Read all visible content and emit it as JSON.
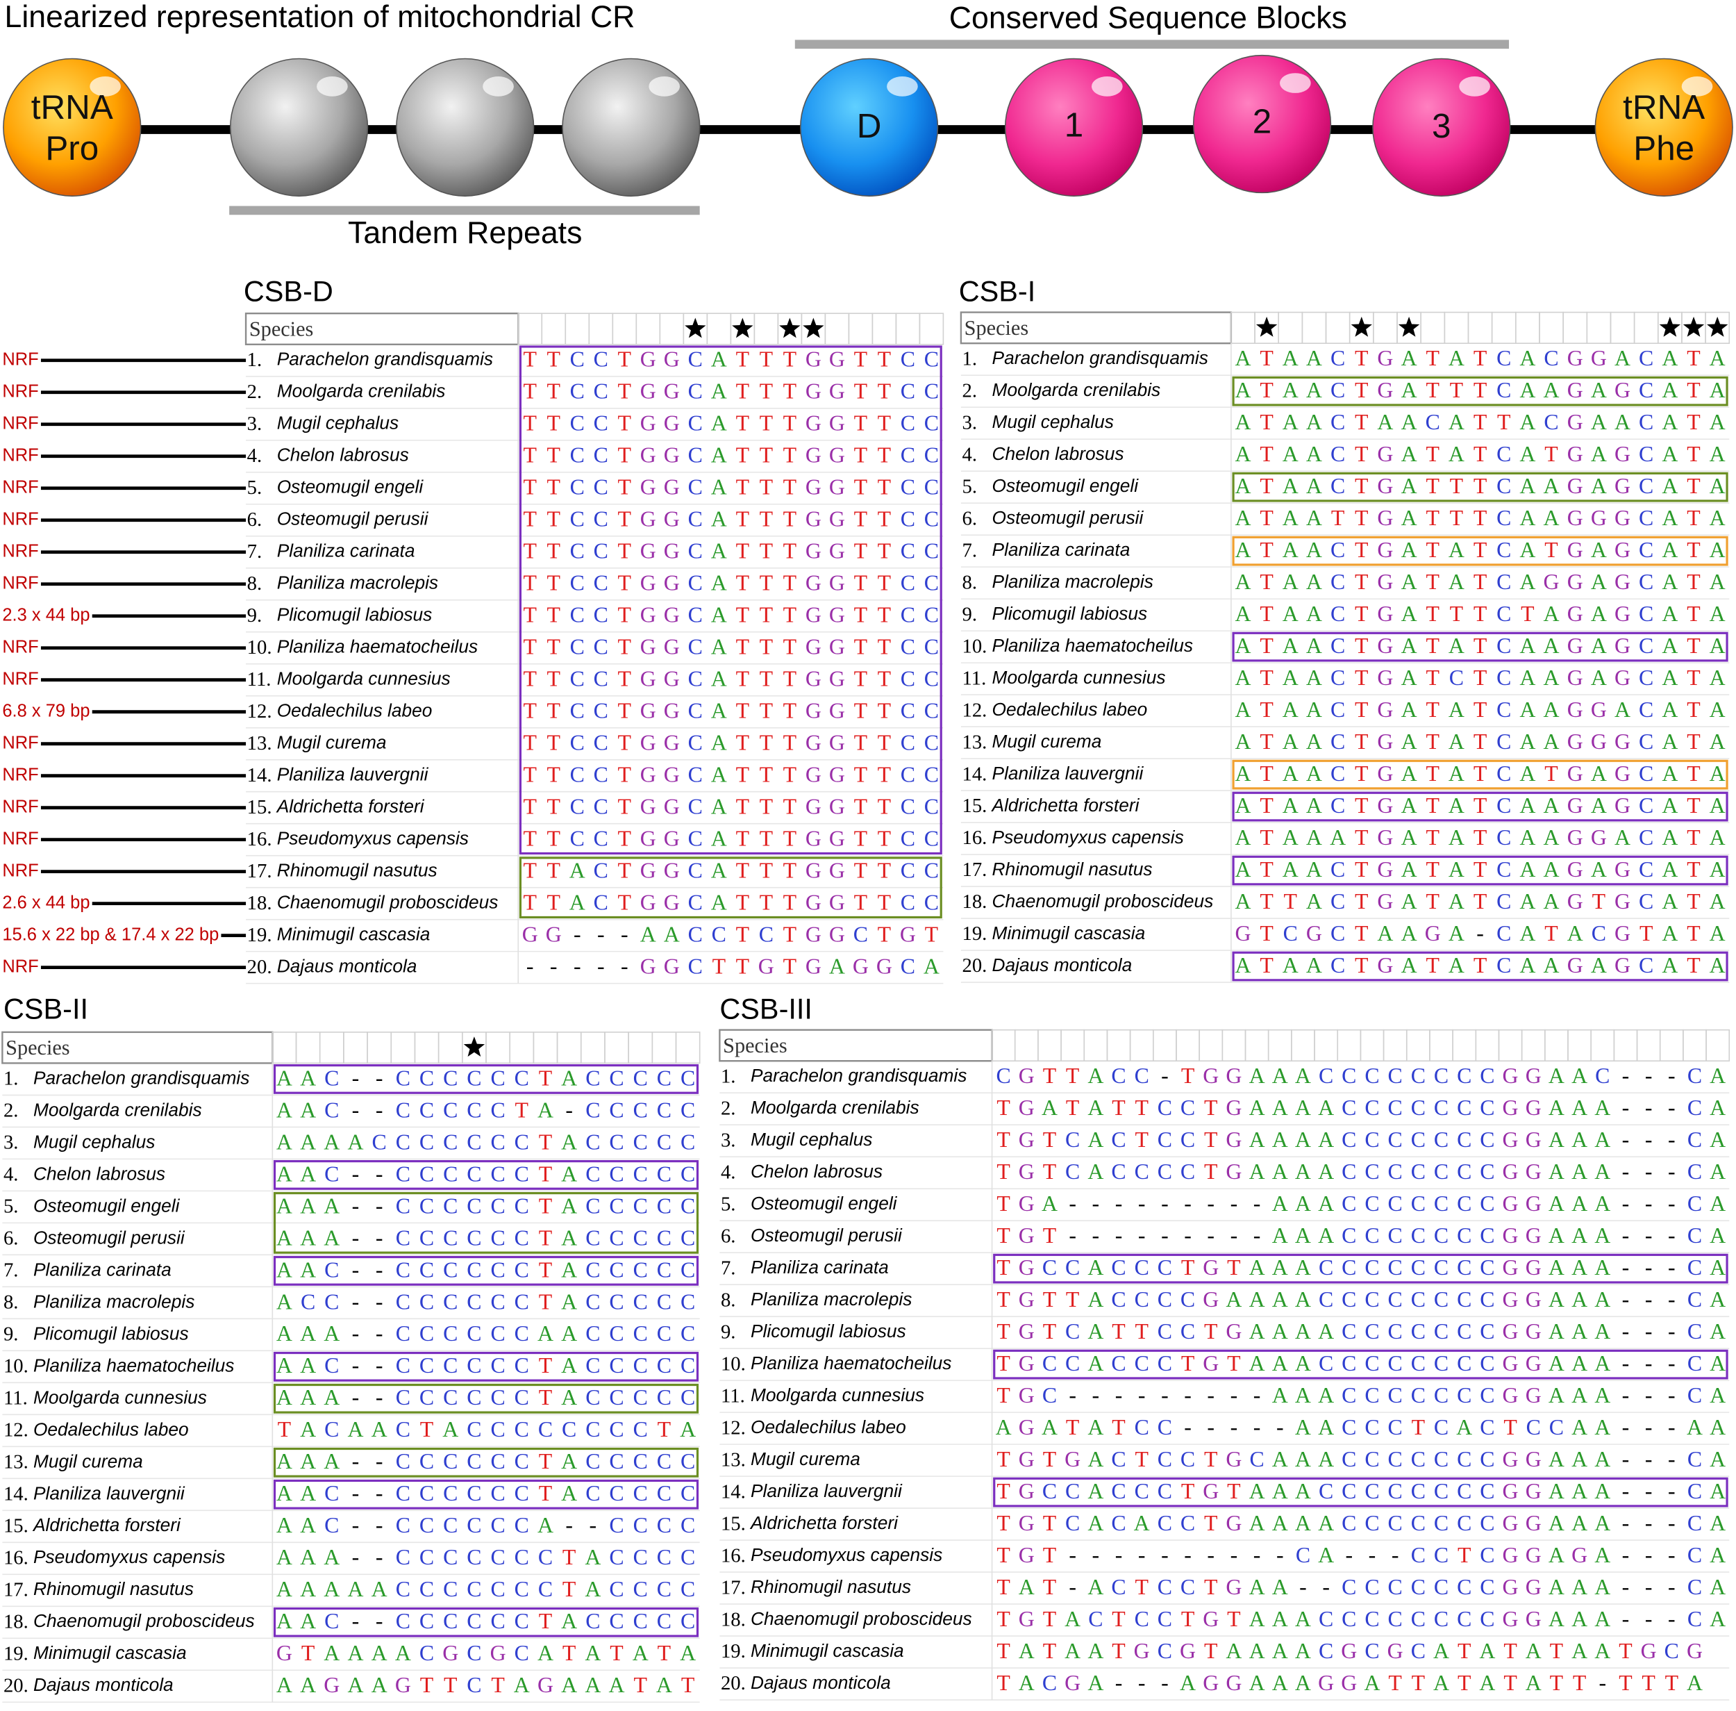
{
  "diagram": {
    "title": "Linearized representation of mitochondrial CR",
    "csb_label": "Conserved Sequence Blocks",
    "tr_label": "Tandem Repeats",
    "nodes": [
      [
        "tRNA",
        "Pro"
      ],
      [
        "D"
      ],
      [
        "1"
      ],
      [
        "2"
      ],
      [
        "3"
      ],
      [
        "tRNA",
        "Phe"
      ]
    ]
  },
  "numbers": [
    "1.",
    "2.",
    "3.",
    "4.",
    "5.",
    "6.",
    "7.",
    "8.",
    "9.",
    "10.",
    "11.",
    "12.",
    "13.",
    "14.",
    "15.",
    "16.",
    "17.",
    "18.",
    "19.",
    "20."
  ],
  "species": [
    "Parachelon grandisquamis",
    "Moolgarda crenilabis",
    "Mugil cephalus",
    "Chelon labrosus",
    "Osteomugil engeli",
    "Osteomugil perusii",
    "Planiliza carinata",
    "Planiliza macrolepis",
    "Plicomugil labiosus",
    "Planiliza haematocheilus",
    "Moolgarda cunnesius",
    "Oedalechilus labeo",
    "Mugil curema",
    "Planiliza lauvergnii",
    "Aldrichetta forsteri",
    "Pseudomyxus capensis",
    "Rhinomugil nasutus",
    "Chaenomugil proboscideus",
    "Minimugil cascasia",
    "Dajaus monticola"
  ],
  "panels": [
    {
      "title": "CSB-D",
      "header": "Species",
      "stars": [
        7,
        9,
        11,
        12
      ],
      "repeats": [
        "NRF",
        "NRF",
        "NRF",
        "NRF",
        "NRF",
        "NRF",
        "NRF",
        "NRF",
        "2.3 x 44 bp",
        "NRF",
        "NRF",
        "6.8 x 79 bp",
        "NRF",
        "NRF",
        "NRF",
        "NRF",
        "NRF",
        "2.6 x 44 bp",
        "15.6 x 22 bp & 17.4 x 22 bp",
        "NRF"
      ],
      "rows": [
        {
          "seq": "TTCCTGGCATTTGGTTCC",
          "box": "#7b2fbf"
        },
        {
          "seq": "TTCCTGGCATTTGGTTCC",
          "box": "#7b2fbf"
        },
        {
          "seq": "TTCCTGGCATTTGGTTCC",
          "box": "#7b2fbf"
        },
        {
          "seq": "TTCCTGGCATTTGGTTCC",
          "box": "#7b2fbf"
        },
        {
          "seq": "TTCCTGGCATTTGGTTCC",
          "box": "#7b2fbf"
        },
        {
          "seq": "TTCCTGGCATTTGGTTCC",
          "box": "#7b2fbf"
        },
        {
          "seq": "TTCCTGGCATTTGGTTCC",
          "box": "#7b2fbf"
        },
        {
          "seq": "TTCCTGGCATTTGGTTCC",
          "box": "#7b2fbf"
        },
        {
          "seq": "TTCCTGGCATTTGGTTCC",
          "box": "#7b2fbf"
        },
        {
          "seq": "TTCCTGGCATTTGGTTCC",
          "box": "#7b2fbf"
        },
        {
          "seq": "TTCCTGGCATTTGGTTCC",
          "box": "#7b2fbf"
        },
        {
          "seq": "TTCCTGGCATTTGGTTCC",
          "box": "#7b2fbf"
        },
        {
          "seq": "TTCCTGGCATTTGGTTCC",
          "box": "#7b2fbf"
        },
        {
          "seq": "TTCCTGGCATTTGGTTCC",
          "box": "#7b2fbf"
        },
        {
          "seq": "TTCCTGGCATTTGGTTCC",
          "box": "#7b2fbf"
        },
        {
          "seq": "TTCCTGGCATTTGGTTCC",
          "box": "#7b2fbf"
        },
        {
          "seq": "TTACTGGCATTTGGTTCC",
          "box": "#6b8e23"
        },
        {
          "seq": "TTACTGGCATTTGGTTCC",
          "box": "#6b8e23"
        },
        {
          "seq": "GG---AACCTCTGGCTGT"
        },
        {
          "seq": "-----GGCTTGTGAGGCA"
        }
      ]
    },
    {
      "title": "CSB-I",
      "header": "Species",
      "stars": [
        1,
        5,
        7,
        18,
        19,
        20
      ],
      "rows": [
        {
          "seq": "ATAACTGATATCACGGACATA"
        },
        {
          "seq": "ATAACTGATTTCAAGAGCATA",
          "box": "#6b8e23"
        },
        {
          "seq": "ATAACTAACATTACGAACATA"
        },
        {
          "seq": "ATAACTGATATCATGAGCATA"
        },
        {
          "seq": "ATAACTGATTTCAAGAGCATA",
          "box": "#6b8e23"
        },
        {
          "seq": "ATAATTGATTTCAAGGGCATA"
        },
        {
          "seq": "ATAACTGATATCATGAGCATA",
          "box": "#f0a030"
        },
        {
          "seq": "ATAACTGATATCAGGAGCATA"
        },
        {
          "seq": "ATAACTGATTTCTAGAGCATA"
        },
        {
          "seq": "ATAACTGATATCAAGAGCATA",
          "box": "#7b2fbf"
        },
        {
          "seq": "ATAACTGATCTCAAGAGCATA"
        },
        {
          "seq": "ATAACTGATATCAAGGACATA"
        },
        {
          "seq": "ATAACTGATATCAAGGGCATA"
        },
        {
          "seq": "ATAACTGATATCATGAGCATA",
          "box": "#f0a030"
        },
        {
          "seq": "ATAACTGATATCAAGAGCATA",
          "box": "#7b2fbf"
        },
        {
          "seq": "ATAAATGATATCAAGGACATA"
        },
        {
          "seq": "ATAACTGATATCAAGAGCATA",
          "box": "#7b2fbf"
        },
        {
          "seq": "ATTACTGATATCAAGTGCATA"
        },
        {
          "seq": "GTCGCTAAGA-CATACGTATA"
        },
        {
          "seq": "ATAACTGATATCAAGAGCATA",
          "box": "#7b2fbf"
        }
      ]
    },
    {
      "title": "CSB-II",
      "header": "Species",
      "stars": [
        8
      ],
      "rows": [
        {
          "seq": "AAC--CCCCCCTACCCCC",
          "box": "#7b2fbf"
        },
        {
          "seq": "AAC--CCCCCTA-CCCCC"
        },
        {
          "seq": "AAAACCCCCCCTACCCCC"
        },
        {
          "seq": "AAC--CCCCCCTACCCCC",
          "box": "#7b2fbf"
        },
        {
          "seq": "AAA--CCCCCCTACCCCC",
          "box": "#6b8e23"
        },
        {
          "seq": "AAA--CCCCCCTACCCCC",
          "box": "#6b8e23"
        },
        {
          "seq": "AAC--CCCCCCTACCCCC",
          "box": "#7b2fbf"
        },
        {
          "seq": "ACC--CCCCCCTACCCCC"
        },
        {
          "seq": "AAA--CCCCCCAACCCCC"
        },
        {
          "seq": "AAC--CCCCCCTACCCCC",
          "box": "#7b2fbf"
        },
        {
          "seq": "AAA--CCCCCCTACCCCC",
          "box": "#6b8e23"
        },
        {
          "seq": "TACAACTACCCCCCCCTA"
        },
        {
          "seq": "AAA--CCCCCCTACCCCC",
          "box": "#6b8e23"
        },
        {
          "seq": "AAC--CCCCCCTACCCCC",
          "box": "#7b2fbf"
        },
        {
          "seq": "AAC--CCCCCCA--CCCC"
        },
        {
          "seq": "AAA--CCCCCCCTACCCC"
        },
        {
          "seq": "AAAAACCCCCCCTACCCC"
        },
        {
          "seq": "AAC--CCCCCCTACCCCC",
          "box": "#7b2fbf"
        },
        {
          "seq": "GTAAAACGCGCATATATA"
        },
        {
          "seq": "AAGAAGTTCTAGAAATAT"
        }
      ]
    },
    {
      "title": "CSB-III",
      "header": "Species",
      "stars": [],
      "rows": [
        {
          "seq": "CGTTACC-TGGAAACCCCCCCCGGAAC---CA"
        },
        {
          "seq": "TGATATTCCTGAAAACCCCCCCGGAAA---CA"
        },
        {
          "seq": "TGTCACTCCTGAAAACCCCCCCGGAAA---CA"
        },
        {
          "seq": "TGTCACCCCTGAAAACCCCCCCGGAAA---CA"
        },
        {
          "seq": "TGA---------AAACCCCCCCGGAAA---CA"
        },
        {
          "seq": "TGT---------AAACCCCCCCGGAAA---CA"
        },
        {
          "seq": "TGCCACCCTGTAAACCCCCCCCGGAAA---CA",
          "box": "#7b2fbf"
        },
        {
          "seq": "TGTTACCCCGAAAACCCCCCCCGGAAA---CA"
        },
        {
          "seq": "TGTCATTCCTGAAAACCCCCCCGGAAA---CA"
        },
        {
          "seq": "TGCCACCCTGTAAACCCCCCCCGGAAA---CA",
          "box": "#7b2fbf"
        },
        {
          "seq": "TGC---------AAACCCCCCCGGAAA---CA"
        },
        {
          "seq": "AGATATCC-----AACCCTCACTCCAA---AA"
        },
        {
          "seq": "TGTGACTCCTGCAAACCCCCCCGGAAA---CA"
        },
        {
          "seq": "TGCCACCCTGTAAACCCCCCCCGGAAA---CA",
          "box": "#7b2fbf"
        },
        {
          "seq": "TGTCACACCTGAAAACCCCCCCGGAAA---CA"
        },
        {
          "seq": "TGT----------CA---CCTCGGAGA---CA"
        },
        {
          "seq": "TAT-ACTCCTGAA--CCCCCCCGGAAA---CA"
        },
        {
          "seq": "TGTACTCCTGTAAACCCCCCCCGGAAA---CA"
        },
        {
          "seq": "TATAATGCGTAAAACGCGCATATATAATGCG"
        },
        {
          "seq": "TACGA---AGGAAAGGATTATATATT-TTTA"
        }
      ]
    }
  ]
}
